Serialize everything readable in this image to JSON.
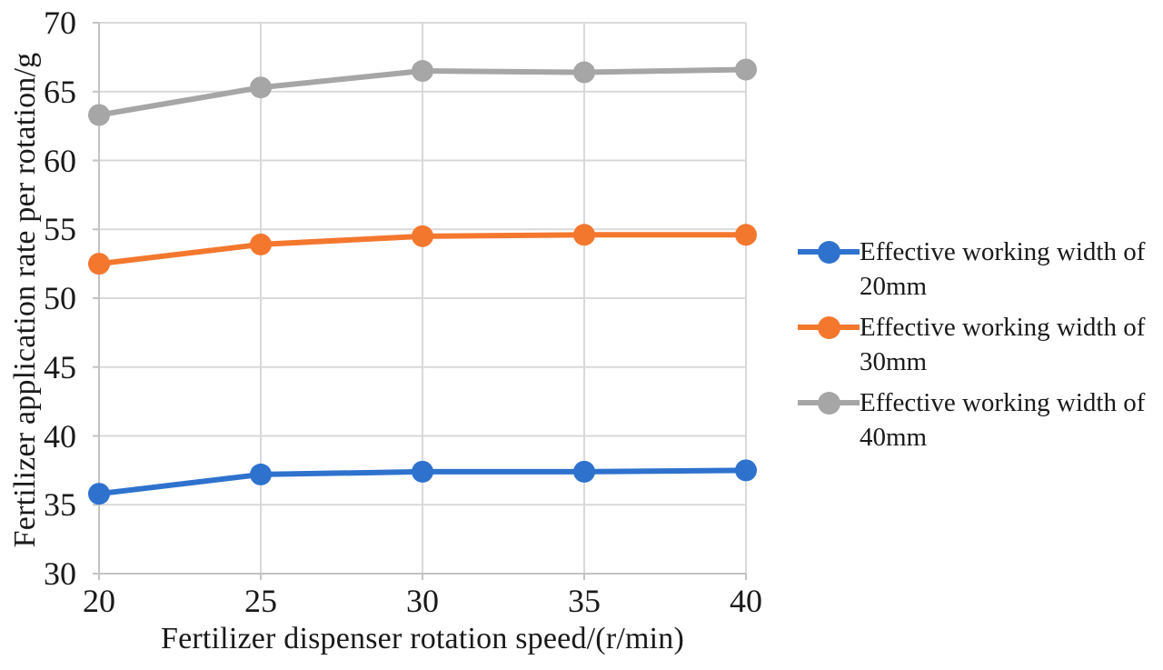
{
  "chart_data": {
    "type": "line",
    "title": "",
    "xlabel": "Fertilizer dispenser rotation speed/(r/min)",
    "ylabel": "Fertilizer application rate per rotation/g",
    "x": [
      20,
      25,
      30,
      35,
      40
    ],
    "x_ticks": [
      "20",
      "25",
      "30",
      "35",
      "40"
    ],
    "y_ticks": [
      "30",
      "35",
      "40",
      "45",
      "50",
      "55",
      "60",
      "65",
      "70"
    ],
    "xlim": [
      20,
      40
    ],
    "ylim": [
      30,
      70
    ],
    "grid": true,
    "legend_position": "right",
    "gridline_color": "#d9d9d9",
    "axis_color": "#c3c3c3",
    "series": [
      {
        "name": "Effective working width of 20mm",
        "label_line1": "Effective working width of",
        "label_line2": "20mm",
        "color": "#2e72ce",
        "values": [
          35.8,
          37.2,
          37.4,
          37.4,
          37.5
        ]
      },
      {
        "name": "Effective working width of 30mm",
        "label_line1": "Effective working width of",
        "label_line2": "30mm",
        "color": "#f4772e",
        "values": [
          52.5,
          53.9,
          54.5,
          54.6,
          54.6
        ]
      },
      {
        "name": "Effective working width of 40mm",
        "label_line1": "Effective working width of",
        "label_line2": "40mm",
        "color": "#a6a6a6",
        "values": [
          63.3,
          65.3,
          66.5,
          66.4,
          66.6
        ]
      }
    ]
  }
}
